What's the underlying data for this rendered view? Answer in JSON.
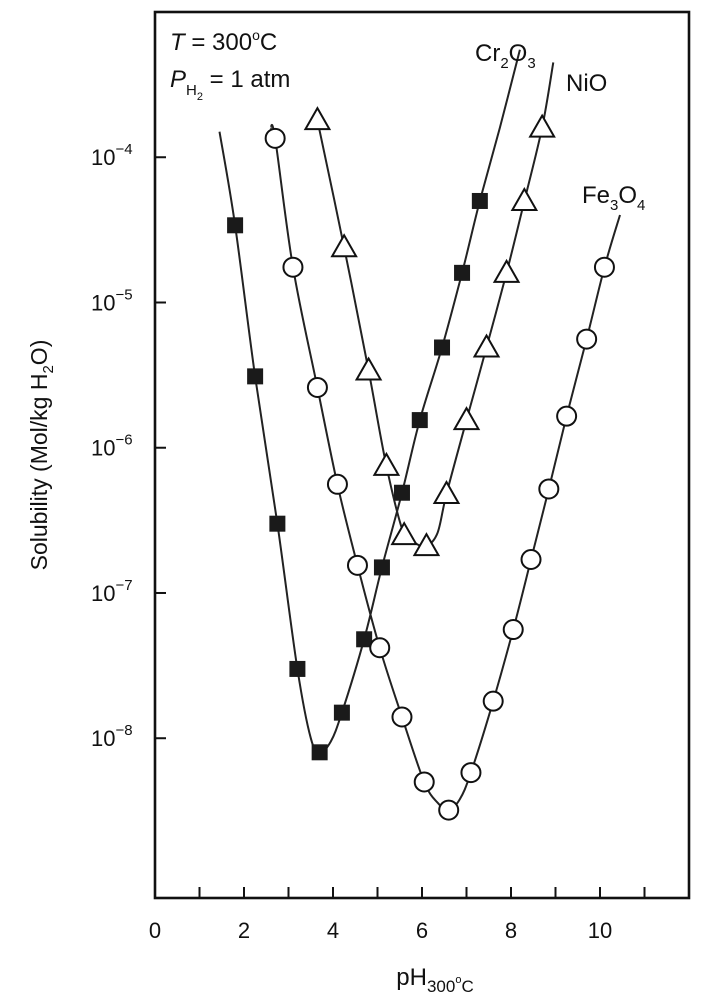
{
  "chart_data": {
    "type": "scatter",
    "conditions": {
      "temperature": {
        "symbol": "T",
        "text": " = 300",
        "sup": "o",
        "unit": "C"
      },
      "pressure": {
        "symbol": "P",
        "sub": "H",
        "subsub": "2",
        "text": " = 1 atm"
      }
    },
    "xlabel": {
      "main": "pH",
      "sub": "300",
      "subsup": "o",
      "subend": "C"
    },
    "ylabel": "Solubility (Mol/kg H",
    "ylabel_sub": "2",
    "ylabel_end": "O)",
    "x_range": [
      0,
      12
    ],
    "x_ticks": [
      0,
      2,
      4,
      6,
      8,
      10
    ],
    "x_tick_labels": [
      "0",
      "2",
      "4",
      "6",
      "8",
      "10"
    ],
    "y_scale": "log",
    "y_range_exponent": [
      -9.1,
      -3.0
    ],
    "y_ticks": [
      {
        "exp": -4,
        "base": "10",
        "sup": "−4"
      },
      {
        "exp": -5,
        "base": "10",
        "sup": "−5"
      },
      {
        "exp": -6,
        "base": "10",
        "sup": "−6"
      },
      {
        "exp": -7,
        "base": "10",
        "sup": "−7"
      },
      {
        "exp": -8,
        "base": "10",
        "sup": "−8"
      }
    ],
    "grid": false,
    "series": [
      {
        "name": "Cr2O3",
        "label": {
          "base": "Cr",
          "sub1": "2",
          "mid": "O",
          "sub2": "3"
        },
        "marker": "filled-square",
        "x": [
          1.8,
          2.25,
          2.75,
          3.2,
          3.7,
          4.2,
          4.7,
          5.1,
          5.55,
          5.95,
          6.45,
          6.9,
          7.3
        ],
        "y": [
          3.4e-05,
          3.1e-06,
          3e-07,
          3e-08,
          8e-09,
          1.5e-08,
          4.8e-08,
          1.5e-07,
          4.9e-07,
          1.55e-06,
          4.9e-06,
          1.6e-05,
          5e-05
        ]
      },
      {
        "name": "NiO",
        "label": {
          "base": "NiO"
        },
        "marker": "open-triangle",
        "x": [
          3.65,
          4.25,
          4.8,
          5.2,
          5.6,
          6.1,
          6.55,
          7.0,
          7.45,
          7.9,
          8.3,
          8.7
        ],
        "y": [
          0.00018,
          2.4e-05,
          3.4e-06,
          7.5e-07,
          2.5e-07,
          2.1e-07,
          4.8e-07,
          1.55e-06,
          4.9e-06,
          1.6e-05,
          5e-05,
          0.00016
        ]
      },
      {
        "name": "Fe3O4",
        "label": {
          "base": "Fe",
          "sub1": "3",
          "mid": "O",
          "sub2": "4"
        },
        "marker": "open-circle",
        "x": [
          2.7,
          3.1,
          3.65,
          4.1,
          4.55,
          5.05,
          5.55,
          6.05,
          6.6,
          7.1,
          7.6,
          8.05,
          8.45,
          8.85,
          9.25,
          9.7,
          10.1
        ],
        "y": [
          0.000135,
          1.75e-05,
          2.6e-06,
          5.6e-07,
          1.55e-07,
          4.2e-08,
          1.4e-08,
          5e-09,
          3.2e-09,
          5.8e-09,
          1.8e-08,
          5.6e-08,
          1.7e-07,
          5.2e-07,
          1.65e-06,
          5.6e-06,
          1.75e-05
        ]
      }
    ],
    "curves": [
      {
        "series": "Cr2O3",
        "x": [
          1.45,
          1.8,
          2.25,
          2.75,
          3.2,
          3.5,
          3.7,
          3.95,
          4.2,
          4.7,
          5.1,
          5.55,
          5.95,
          6.45,
          6.9,
          7.3,
          7.75,
          8.2
        ],
        "y": [
          0.00015,
          3.4e-05,
          3.1e-06,
          3e-07,
          3e-08,
          1e-08,
          8e-09,
          9.5e-09,
          1.5e-08,
          4.8e-08,
          1.5e-07,
          4.9e-07,
          1.55e-06,
          4.9e-06,
          1.6e-05,
          5e-05,
          0.00016,
          0.00055
        ]
      },
      {
        "series": "NiO",
        "x": [
          3.65,
          4.25,
          4.8,
          5.2,
          5.6,
          5.85,
          6.1,
          6.35,
          6.55,
          7.0,
          7.45,
          7.9,
          8.3,
          8.7,
          8.95
        ],
        "y": [
          0.00018,
          2.4e-05,
          3.4e-06,
          7.5e-07,
          2.5e-07,
          2.2e-07,
          2.1e-07,
          2.6e-07,
          4.8e-07,
          1.55e-06,
          4.9e-06,
          1.6e-05,
          5e-05,
          0.00016,
          0.00045
        ]
      },
      {
        "series": "Fe3O4",
        "x": [
          2.6,
          2.7,
          3.1,
          3.65,
          4.1,
          4.55,
          5.05,
          5.55,
          6.05,
          6.35,
          6.6,
          6.85,
          7.1,
          7.6,
          8.05,
          8.45,
          8.85,
          9.25,
          9.7,
          10.1,
          10.45
        ],
        "y": [
          0.00016,
          0.000135,
          1.75e-05,
          2.6e-06,
          5.6e-07,
          1.55e-07,
          4.2e-08,
          1.4e-08,
          5e-09,
          3.6e-09,
          3.2e-09,
          3.8e-09,
          5.8e-09,
          1.8e-08,
          5.6e-08,
          1.7e-07,
          5.2e-07,
          1.65e-06,
          5.6e-06,
          1.75e-05,
          4e-05
        ]
      }
    ]
  }
}
